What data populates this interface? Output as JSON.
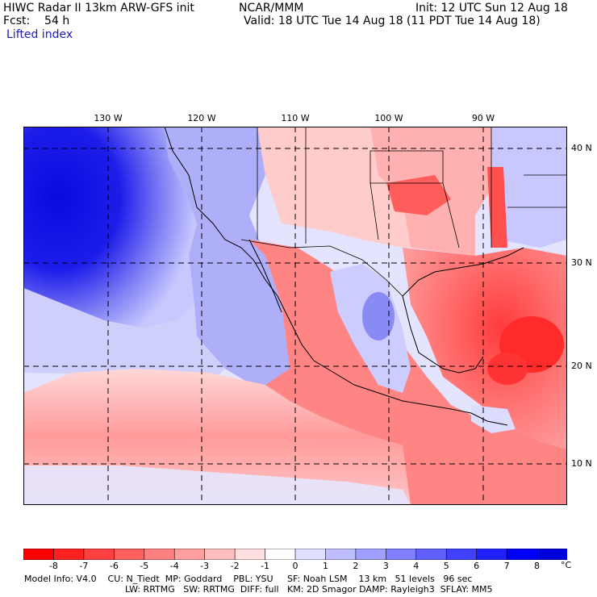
{
  "header": {
    "title_left": "HIWC Radar II 13km ARW-GFS init",
    "org": "NCAR/MMM",
    "init": "Init: 12 UTC Sun 12 Aug 18",
    "fcst": "Fcst:    54 h",
    "valid": "Valid: 18 UTC Tue 14 Aug 18 (11 PDT Tue 14 Aug 18)",
    "field": "Lifted index"
  },
  "map": {
    "lon_labels": [
      "130 W",
      "120 W",
      "110 W",
      "100 W",
      "90 W"
    ],
    "lat_labels": [
      "40 N",
      "30 N",
      "20 N",
      "10 N"
    ]
  },
  "colorbar": {
    "labels": [
      "-8",
      "-7",
      "-6",
      "-5",
      "-4",
      "-3",
      "-2",
      "-1",
      "0",
      "1",
      "2",
      "3",
      "4",
      "5",
      "6",
      "7",
      "8"
    ],
    "unit": "°C",
    "colors": [
      "#ff0000",
      "#ff2020",
      "#ff4040",
      "#ff5f5f",
      "#ff7f7f",
      "#ff9f9f",
      "#ffbfbf",
      "#ffdfdf",
      "#ffffff",
      "#dfdfff",
      "#bfbfff",
      "#9f9fff",
      "#7f7fff",
      "#5f5fff",
      "#4040ff",
      "#2020ff",
      "#0000ff",
      "#0000dd"
    ]
  },
  "footer": {
    "line1": "Model Info: V4.0    CU: N_Tiedt  MP: Goddard    PBL: YSU     SF: Noah LSM    13 km   51 levels   96 sec",
    "line2": "LW: RRTMG   SW: RRTMG  DIFF: full   KM: 2D Smagor DAMP: Rayleigh3  SFLAY: MM5"
  }
}
